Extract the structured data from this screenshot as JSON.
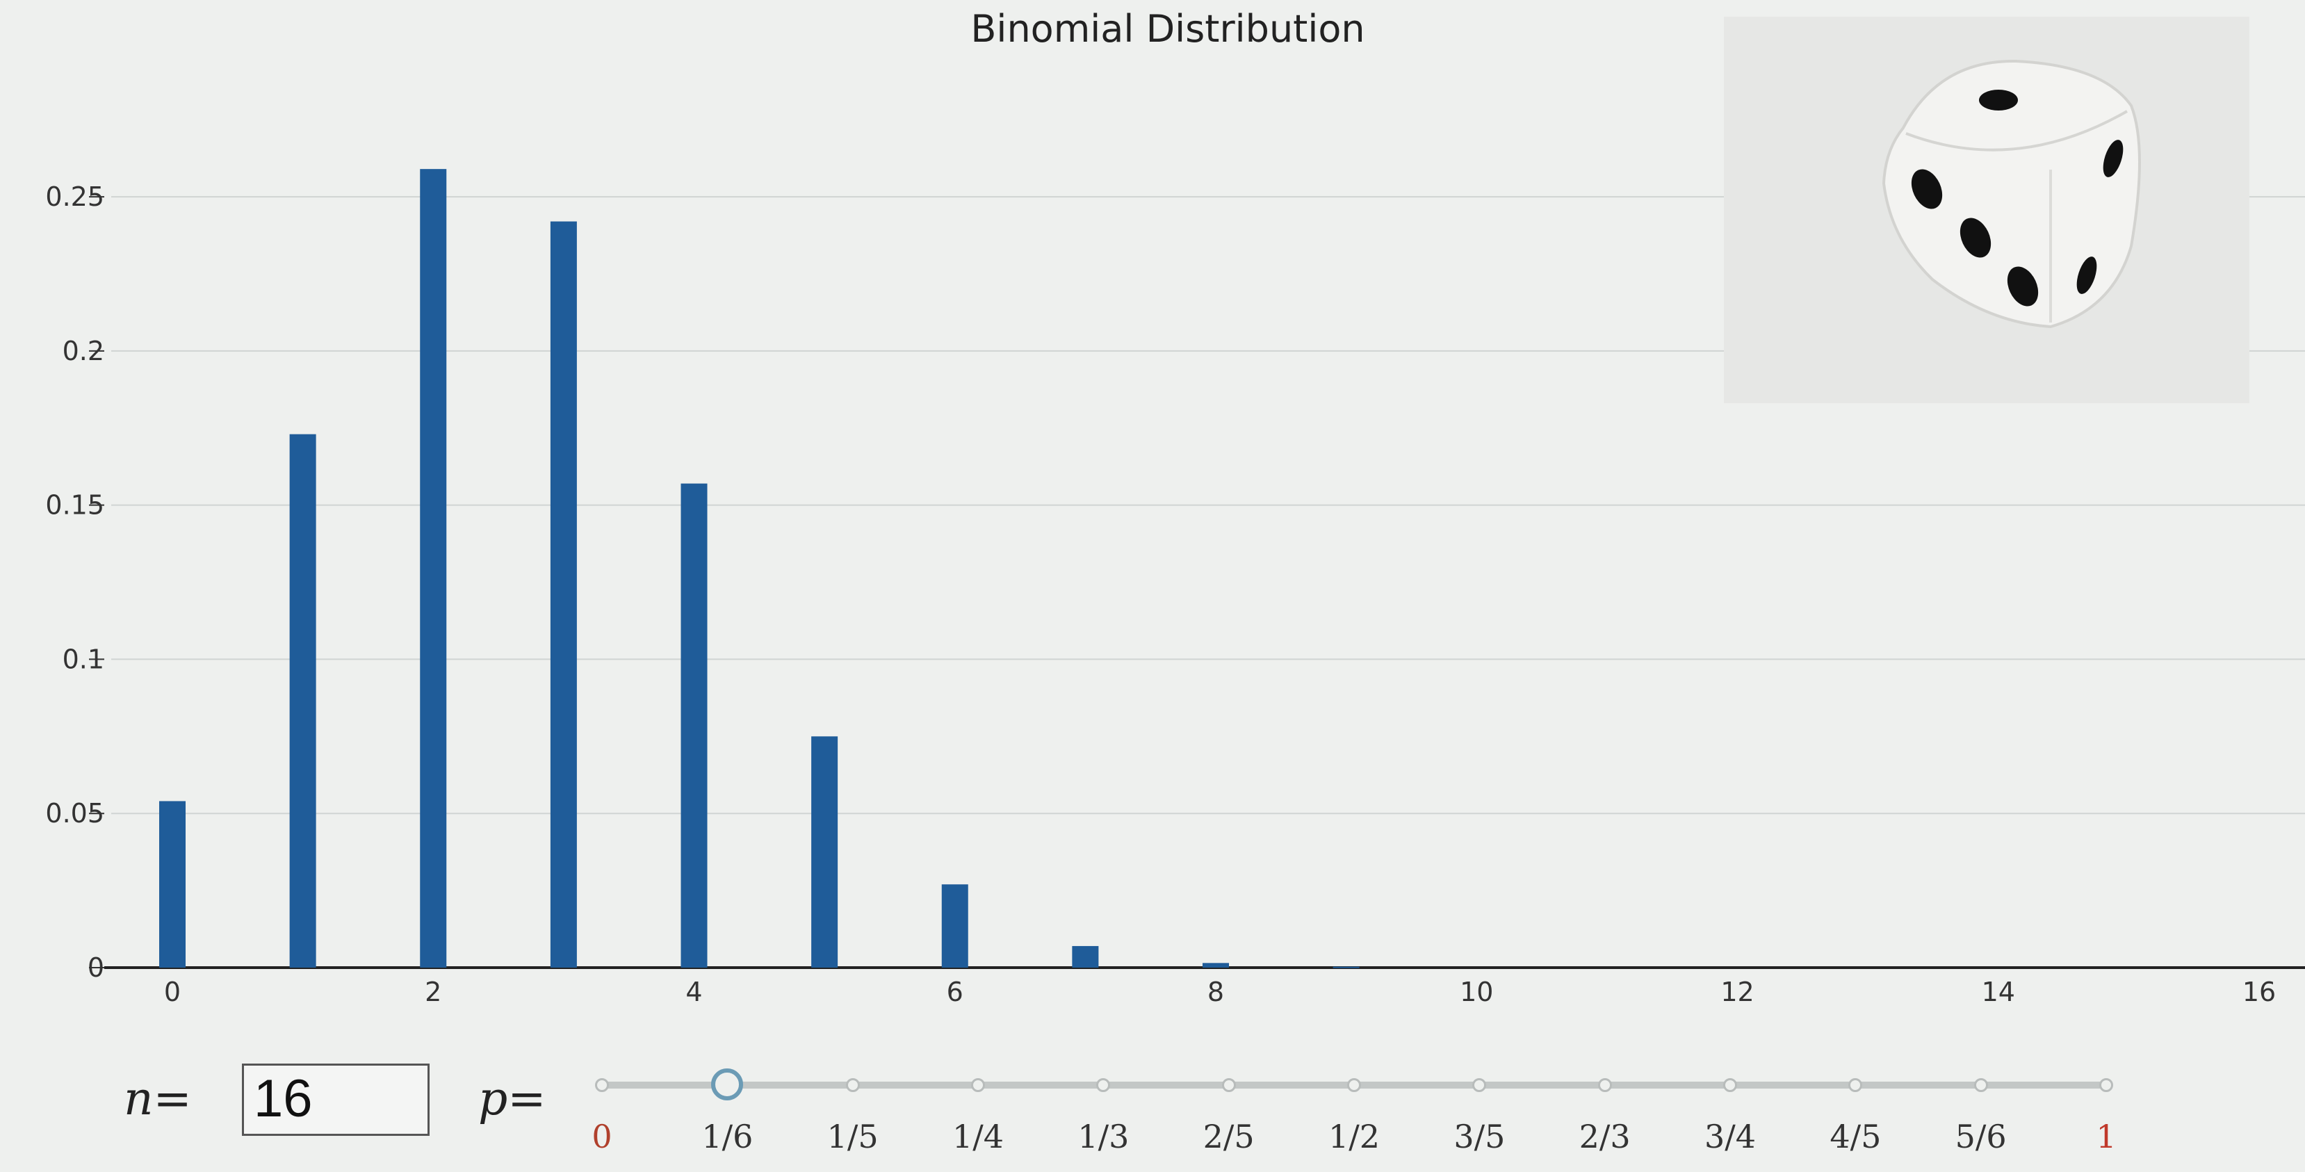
{
  "chart_data": {
    "type": "bar",
    "title": "Binomial Distribution",
    "n": 16,
    "p": "1/6",
    "x": [
      0,
      1,
      2,
      3,
      4,
      5,
      6,
      7,
      8,
      9,
      10,
      11,
      12,
      13,
      14,
      15,
      16
    ],
    "values": [
      0.054,
      0.173,
      0.259,
      0.242,
      0.157,
      0.075,
      0.027,
      0.007,
      0.0015,
      0.0003,
      0,
      0,
      0,
      0,
      0,
      0,
      0
    ],
    "xticks": [
      "0",
      "2",
      "4",
      "6",
      "8",
      "10",
      "12",
      "14",
      "16"
    ],
    "yticks": [
      "0",
      "0.05",
      "0.1",
      "0.15",
      "0.2",
      "0.25"
    ],
    "xlim": [
      0,
      16
    ],
    "ylim": [
      0,
      0.28
    ],
    "grid": true,
    "bar_color": "#1f5c99"
  },
  "controls": {
    "n_label": "n=",
    "n_value": "16",
    "p_label": "p=",
    "p_options": [
      "0",
      "1/6",
      "1/5",
      "1/4",
      "1/3",
      "2/5",
      "1/2",
      "3/5",
      "2/3",
      "3/4",
      "4/5",
      "5/6",
      "1"
    ],
    "p_selected_index": 1,
    "end_label_color": "#c0392b"
  },
  "image": {
    "icon": "dice-icon"
  }
}
